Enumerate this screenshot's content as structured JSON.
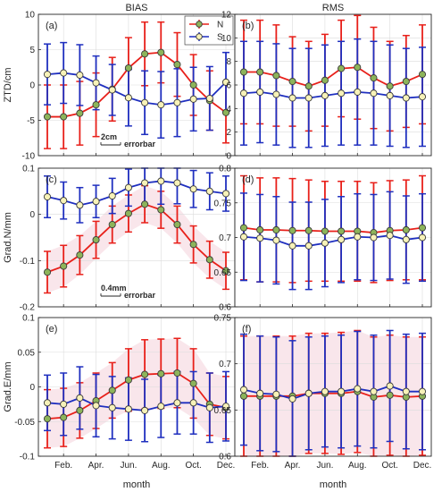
{
  "figure": {
    "col_titles": [
      "BIAS",
      "RMS"
    ],
    "xlabel": "month",
    "legend": [
      "N",
      "S"
    ]
  },
  "colors": {
    "N": "#e8201a",
    "S": "#1f2fbf",
    "N_fill": "#8db45a",
    "S_fill": "#f7f2b8",
    "shade": "#f6dbe3"
  },
  "chart_data": [
    {
      "id": "a",
      "type": "line",
      "panel_label": "(a)",
      "ylabel": "ZTD/cm",
      "ylim": [
        -10,
        10
      ],
      "yticks": [
        "-10",
        "-5",
        "0",
        "5",
        "10"
      ],
      "ytick_values": [
        -10,
        -5,
        0,
        5,
        10
      ],
      "xticks": [],
      "x": [
        1,
        2,
        3,
        4,
        5,
        6,
        7,
        8,
        9,
        10,
        11,
        12
      ],
      "series": [
        {
          "name": "N",
          "values": [
            -4.5,
            -4.5,
            -4.0,
            -2.8,
            -0.6,
            2.4,
            4.4,
            4.6,
            2.9,
            0.0,
            -2.2,
            -3.9
          ],
          "err": [
            4.5,
            4.5,
            4.5,
            4.5,
            4.5,
            4.3,
            4.5,
            4.3,
            4.5,
            4.3,
            4.2,
            4.3
          ]
        },
        {
          "name": "S",
          "values": [
            1.5,
            1.7,
            1.4,
            0.3,
            -0.7,
            -1.8,
            -2.5,
            -2.8,
            -2.5,
            -2.0,
            -1.9,
            0.4
          ],
          "err": [
            4.3,
            4.3,
            4.3,
            3.8,
            3.6,
            4.0,
            4.5,
            4.7,
            4.8,
            4.5,
            4.5,
            4.2
          ]
        }
      ],
      "shaded": false,
      "legend_placement": "top-right",
      "annotation": {
        "text": "errorbar",
        "scale": "2cm"
      }
    },
    {
      "id": "b",
      "type": "line",
      "panel_label": "(b)",
      "ylabel": "",
      "ylim": [
        0,
        12
      ],
      "yticks": [
        "0",
        "2",
        "4",
        "6",
        "8",
        "10",
        "12"
      ],
      "ytick_values": [
        0,
        2,
        4,
        6,
        8,
        10,
        12
      ],
      "xticks": [],
      "x": [
        1,
        2,
        3,
        4,
        5,
        6,
        7,
        8,
        9,
        10,
        11,
        12
      ],
      "series": [
        {
          "name": "N",
          "values": [
            7.1,
            7.1,
            6.8,
            6.3,
            5.9,
            6.4,
            7.4,
            7.5,
            6.6,
            5.9,
            6.3,
            6.9
          ],
          "err": [
            4.4,
            4.4,
            4.3,
            3.8,
            3.8,
            3.9,
            4.1,
            4.4,
            4.3,
            3.8,
            3.9,
            4.2
          ]
        },
        {
          "name": "S",
          "values": [
            5.3,
            5.4,
            5.2,
            4.9,
            4.9,
            5.1,
            5.3,
            5.4,
            5.3,
            5.1,
            4.9,
            5.0
          ],
          "err": [
            4.4,
            4.3,
            4.3,
            4.2,
            4.2,
            4.3,
            4.4,
            4.5,
            4.4,
            4.3,
            4.2,
            4.2
          ]
        }
      ],
      "shaded": false
    },
    {
      "id": "c",
      "type": "line",
      "panel_label": "(c)",
      "ylabel": "Grad.N/mm",
      "ylim": [
        -0.2,
        0.1
      ],
      "yticks": [
        "-0.2",
        "-0.1",
        "0",
        "0.1"
      ],
      "ytick_values": [
        -0.2,
        -0.1,
        0,
        0.1
      ],
      "xticks": [],
      "x": [
        1,
        2,
        3,
        4,
        5,
        6,
        7,
        8,
        9,
        10,
        11,
        12
      ],
      "series": [
        {
          "name": "N",
          "values": [
            -0.125,
            -0.112,
            -0.088,
            -0.055,
            -0.022,
            0.002,
            0.022,
            0.01,
            -0.022,
            -0.065,
            -0.098,
            -0.122
          ],
          "err": [
            0.045,
            0.045,
            0.042,
            0.04,
            0.04,
            0.04,
            0.04,
            0.04,
            0.04,
            0.04,
            0.04,
            0.04
          ]
        },
        {
          "name": "S",
          "values": [
            0.038,
            0.03,
            0.02,
            0.028,
            0.04,
            0.058,
            0.068,
            0.072,
            0.068,
            0.055,
            0.05,
            0.045
          ],
          "err": [
            0.045,
            0.04,
            0.038,
            0.035,
            0.038,
            0.04,
            0.045,
            0.05,
            0.045,
            0.04,
            0.04,
            0.038
          ]
        }
      ],
      "shaded": true,
      "annotation": {
        "text": "errorbar",
        "scale": "0.4mm"
      }
    },
    {
      "id": "d",
      "type": "line",
      "panel_label": "(d)",
      "ylabel": "",
      "ylim": [
        0.6,
        0.8
      ],
      "yticks": [
        "0.6",
        "0.65",
        "0.7",
        "0.75",
        "0.8"
      ],
      "ytick_values": [
        0.6,
        0.65,
        0.7,
        0.75,
        0.8
      ],
      "xticks": [],
      "x": [
        1,
        2,
        3,
        4,
        5,
        6,
        7,
        8,
        9,
        10,
        11,
        12
      ],
      "series": [
        {
          "name": "N",
          "values": [
            0.714,
            0.711,
            0.711,
            0.71,
            0.71,
            0.709,
            0.709,
            0.709,
            0.707,
            0.71,
            0.711,
            0.714
          ],
          "err": [
            0.075,
            0.075,
            0.075,
            0.075,
            0.073,
            0.072,
            0.072,
            0.072,
            0.072,
            0.072,
            0.072,
            0.075
          ]
        },
        {
          "name": "S",
          "values": [
            0.701,
            0.699,
            0.696,
            0.688,
            0.688,
            0.692,
            0.697,
            0.701,
            0.7,
            0.703,
            0.697,
            0.7
          ],
          "err": [
            0.063,
            0.063,
            0.063,
            0.063,
            0.063,
            0.063,
            0.062,
            0.062,
            0.062,
            0.063,
            0.063,
            0.063
          ]
        }
      ],
      "shaded": false
    },
    {
      "id": "e",
      "type": "line",
      "panel_label": "(e)",
      "ylabel": "Grad.E/mm",
      "ylim": [
        -0.1,
        0.1
      ],
      "yticks": [
        "-0.1",
        "-0.05",
        "0",
        "0.05",
        "0.1"
      ],
      "ytick_values": [
        -0.1,
        -0.05,
        0,
        0.05,
        0.1
      ],
      "xticks": [
        "Feb.",
        "Apr.",
        "Jun.",
        "Aug.",
        "Oct.",
        "Dec."
      ],
      "xtick_values": [
        2,
        4,
        6,
        8,
        10,
        12
      ],
      "x": [
        1,
        2,
        3,
        4,
        5,
        6,
        7,
        8,
        9,
        10,
        11,
        12
      ],
      "series": [
        {
          "name": "N",
          "values": [
            -0.046,
            -0.044,
            -0.034,
            -0.02,
            -0.005,
            0.01,
            0.018,
            0.019,
            0.02,
            0.005,
            -0.025,
            -0.03
          ],
          "err": [
            0.042,
            0.042,
            0.04,
            0.04,
            0.04,
            0.045,
            0.05,
            0.05,
            0.05,
            0.05,
            0.045,
            0.045
          ]
        },
        {
          "name": "S",
          "values": [
            -0.023,
            -0.025,
            -0.016,
            -0.027,
            -0.03,
            -0.032,
            -0.034,
            -0.028,
            -0.023,
            -0.023,
            -0.03,
            -0.028
          ],
          "err": [
            0.04,
            0.045,
            0.045,
            0.045,
            0.045,
            0.045,
            0.045,
            0.045,
            0.045,
            0.045,
            0.05,
            0.05
          ]
        }
      ],
      "shaded": true
    },
    {
      "id": "f",
      "type": "line",
      "panel_label": "(f)",
      "ylabel": "",
      "ylim": [
        0.6,
        0.75
      ],
      "yticks": [
        "0.6",
        "0.65",
        "0.7",
        "0.75"
      ],
      "ytick_values": [
        0.6,
        0.65,
        0.7,
        0.75
      ],
      "xticks": [
        "Feb.",
        "Apr.",
        "Jun.",
        "Aug.",
        "Oct.",
        "Dec."
      ],
      "xtick_values": [
        2,
        4,
        6,
        8,
        10,
        12
      ],
      "x": [
        1,
        2,
        3,
        4,
        5,
        6,
        7,
        8,
        9,
        10,
        11,
        12
      ],
      "series": [
        {
          "name": "N",
          "values": [
            0.665,
            0.665,
            0.665,
            0.665,
            0.668,
            0.668,
            0.668,
            0.67,
            0.664,
            0.666,
            0.664,
            0.665
          ],
          "err": [
            0.065,
            0.065,
            0.065,
            0.065,
            0.065,
            0.065,
            0.066,
            0.066,
            0.065,
            0.065,
            0.065,
            0.064
          ]
        },
        {
          "name": "S",
          "values": [
            0.672,
            0.668,
            0.667,
            0.662,
            0.668,
            0.67,
            0.67,
            0.673,
            0.67,
            0.676,
            0.67,
            0.67
          ],
          "err": [
            0.06,
            0.062,
            0.062,
            0.063,
            0.061,
            0.06,
            0.061,
            0.062,
            0.061,
            0.06,
            0.062,
            0.063
          ]
        }
      ],
      "shaded": true
    }
  ]
}
